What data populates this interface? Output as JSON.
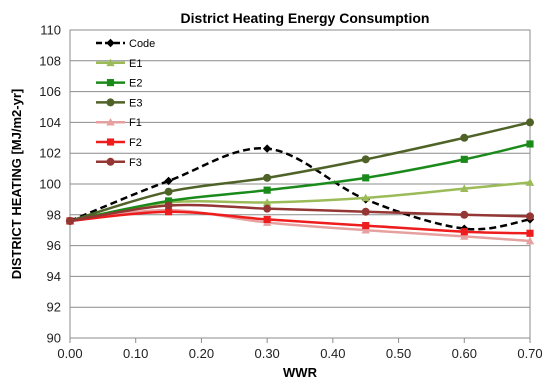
{
  "chart_data": {
    "type": "line",
    "title": "District Heating Energy Consumption",
    "xlabel": "WWR",
    "ylabel": "DISTRICT HEATING [MJ/m2-yr]",
    "xlim": [
      0,
      0.7
    ],
    "ylim": [
      90,
      110
    ],
    "x_ticks": [
      "0.00",
      "0.10",
      "0.20",
      "0.30",
      "0.40",
      "0.50",
      "0.60",
      "0.70"
    ],
    "y_ticks": [
      "90",
      "92",
      "94",
      "96",
      "98",
      "100",
      "102",
      "104",
      "106",
      "108",
      "110"
    ],
    "grid": "horizontal",
    "legend_position": "top-left",
    "x": [
      0,
      0.15,
      0.3,
      0.45,
      0.6,
      0.7
    ],
    "series": [
      {
        "name": "Code",
        "values": [
          97.6,
          100.2,
          102.3,
          99.0,
          97.1,
          97.7
        ],
        "color": "#000000",
        "marker": "diamond",
        "dashed": true
      },
      {
        "name": "E1",
        "values": [
          97.6,
          98.8,
          98.8,
          99.1,
          99.7,
          100.1
        ],
        "color": "#9bbb59",
        "marker": "triangle",
        "dashed": false
      },
      {
        "name": "E2",
        "values": [
          97.6,
          98.9,
          99.6,
          100.4,
          101.6,
          102.6
        ],
        "color": "#1a8a1a",
        "marker": "square",
        "dashed": false
      },
      {
        "name": "E3",
        "values": [
          97.6,
          99.5,
          100.4,
          101.6,
          103.0,
          104.0
        ],
        "color": "#4f6228",
        "marker": "circle",
        "dashed": false
      },
      {
        "name": "F1",
        "values": [
          97.6,
          98.3,
          97.5,
          97.0,
          96.6,
          96.3
        ],
        "color": "#e6a0a0",
        "marker": "triangle",
        "dashed": false
      },
      {
        "name": "F2",
        "values": [
          97.6,
          98.2,
          97.7,
          97.3,
          96.9,
          96.8
        ],
        "color": "#ee1c1c",
        "marker": "square",
        "dashed": false
      },
      {
        "name": "F3",
        "values": [
          97.6,
          98.6,
          98.4,
          98.2,
          98.0,
          97.9
        ],
        "color": "#943634",
        "marker": "circle",
        "dashed": false
      }
    ]
  }
}
